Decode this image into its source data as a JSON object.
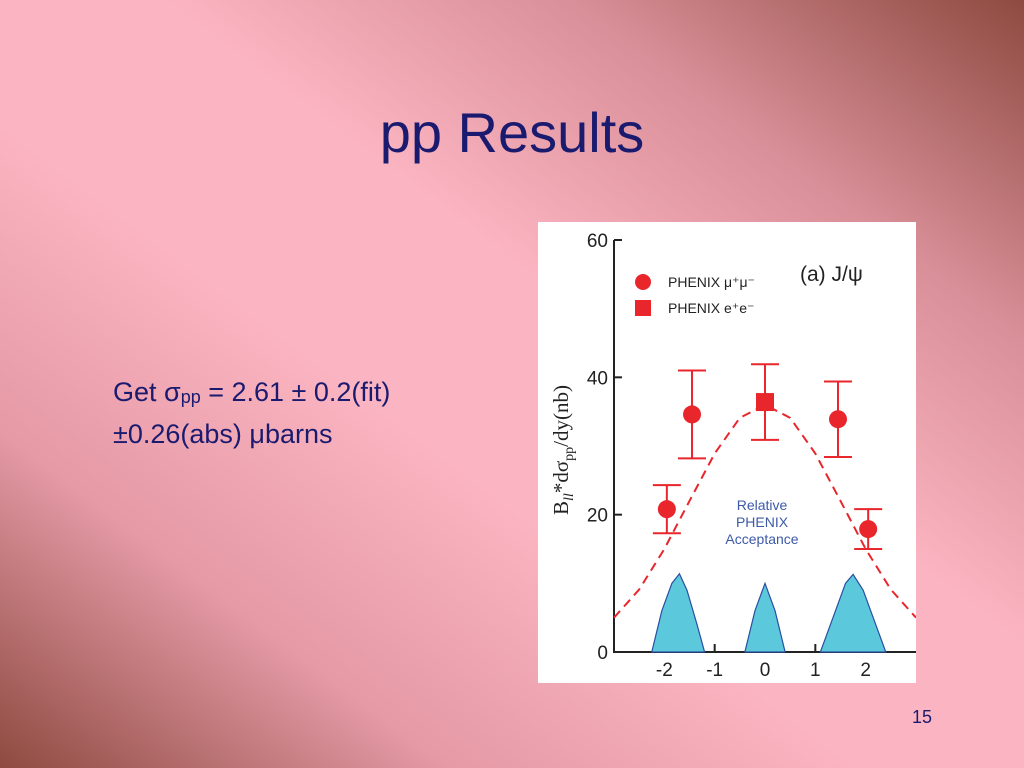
{
  "slide": {
    "title": "pp Results",
    "body": [
      [
        "Get σ",
        "pp",
        " = 2.61 ± 0.2(fit)"
      ],
      [
        "±0.26(abs) μbarns"
      ]
    ],
    "page_number": "15"
  },
  "chart_data": {
    "type": "scatter",
    "ylabel_parts": [
      "B",
      "ll",
      "*dσ",
      "pp",
      "/dy(nb)"
    ],
    "annotations": [
      "(a) J/ψ",
      "Relative",
      "PHENIX",
      "Acceptance"
    ],
    "xlim": [
      -3,
      3
    ],
    "xticks": [
      -2,
      -1,
      0,
      1,
      2
    ],
    "ylim": [
      0,
      60
    ],
    "yticks": [
      0,
      20,
      40,
      60
    ],
    "series": [
      {
        "name": "PHENIX μ⁺μ⁻",
        "marker": "circle",
        "color": "#e8262b",
        "x": [
          -1.95,
          -1.45,
          1.45,
          2.05
        ],
        "values": [
          20.8,
          34.6,
          33.9,
          17.9
        ],
        "errors": [
          3.5,
          6.4,
          5.5,
          2.9
        ]
      },
      {
        "name": "PHENIX e⁺e⁻",
        "marker": "square",
        "color": "#e8262b",
        "x": [
          0
        ],
        "values": [
          36.4
        ],
        "errors": [
          5.5
        ]
      },
      {
        "marker": "dashed-line",
        "color": "#e8262b",
        "x": [
          -3,
          -2.5,
          -2,
          -1.5,
          -1,
          -0.5,
          0,
          0.5,
          1,
          1.5,
          2,
          2.5,
          3
        ],
        "values": [
          5.0,
          9.1,
          15.0,
          22.0,
          28.9,
          34.1,
          36.0,
          34.1,
          28.9,
          22.0,
          15.0,
          9.1,
          5.0
        ]
      },
      {
        "marker": "area",
        "color": "#5bc8dc",
        "x": [
          -2.25,
          -2.05,
          -1.85,
          -1.7,
          -1.55,
          -1.35,
          -1.2,
          null,
          -0.4,
          -0.2,
          0,
          0.2,
          0.4,
          null,
          1.1,
          1.35,
          1.6,
          1.75,
          1.95,
          2.2,
          2.4
        ],
        "values": [
          0,
          6,
          10,
          11.4,
          9,
          4,
          0,
          null,
          0,
          6,
          10,
          6,
          0,
          null,
          0,
          5,
          10,
          11.3,
          9,
          4,
          0
        ]
      }
    ]
  }
}
